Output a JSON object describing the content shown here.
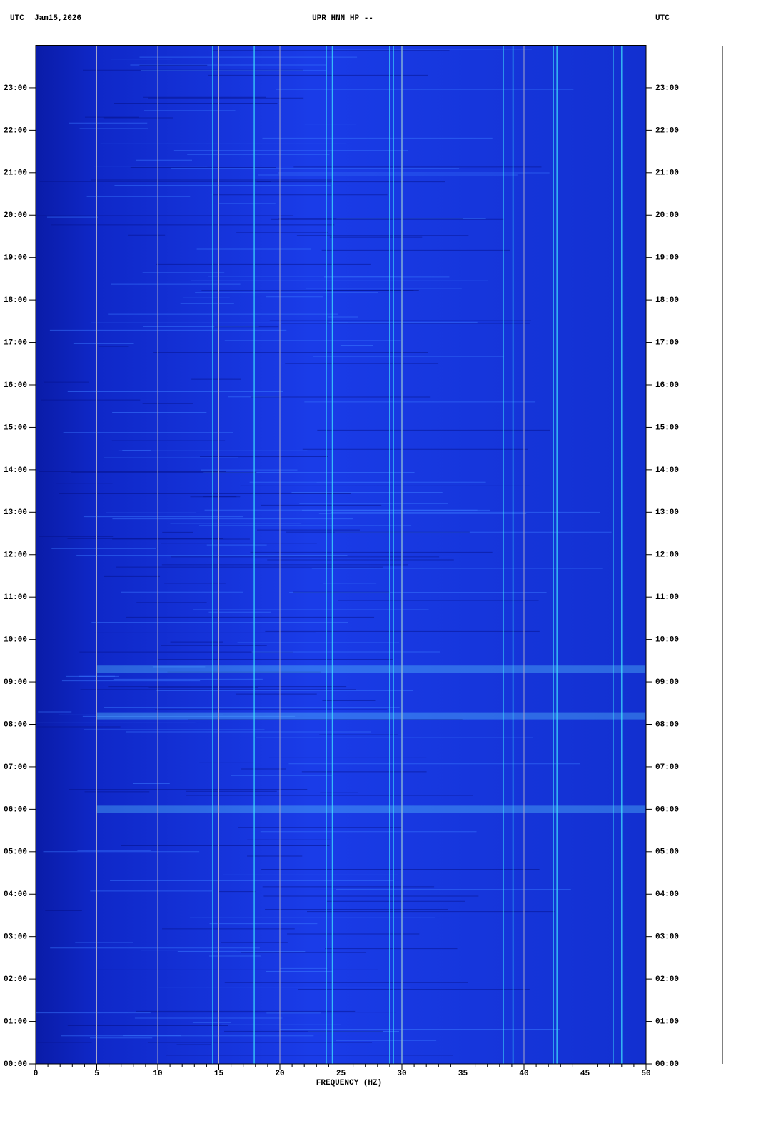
{
  "chart_data": {
    "type": "spectrogram",
    "title": "UPR HNN HP --",
    "date": "Jan15,2026",
    "timezone_label": "UTC",
    "xlabel": "FREQUENCY (HZ)",
    "xlim": [
      0,
      50
    ],
    "xticks": [
      0,
      5,
      10,
      15,
      20,
      25,
      30,
      35,
      40,
      45,
      50
    ],
    "xminorticks": [
      1,
      2,
      3,
      4,
      6,
      7,
      8,
      9,
      11,
      12,
      13,
      14,
      16,
      17,
      18,
      19,
      21,
      22,
      23,
      24,
      26,
      27,
      28,
      29,
      31,
      32,
      33,
      34,
      36,
      37,
      38,
      39,
      41,
      42,
      43,
      44,
      46,
      47,
      48,
      49
    ],
    "ylim": [
      0,
      24
    ],
    "yticks": [
      {
        "value": 0,
        "label": "00:00"
      },
      {
        "value": 1,
        "label": "01:00"
      },
      {
        "value": 2,
        "label": "02:00"
      },
      {
        "value": 3,
        "label": "03:00"
      },
      {
        "value": 4,
        "label": "04:00"
      },
      {
        "value": 5,
        "label": "05:00"
      },
      {
        "value": 6,
        "label": "06:00"
      },
      {
        "value": 7,
        "label": "07:00"
      },
      {
        "value": 8,
        "label": "08:00"
      },
      {
        "value": 9,
        "label": "09:00"
      },
      {
        "value": 10,
        "label": "10:00"
      },
      {
        "value": 11,
        "label": "11:00"
      },
      {
        "value": 12,
        "label": "12:00"
      },
      {
        "value": 13,
        "label": "13:00"
      },
      {
        "value": 14,
        "label": "14:00"
      },
      {
        "value": 15,
        "label": "15:00"
      },
      {
        "value": 16,
        "label": "16:00"
      },
      {
        "value": 17,
        "label": "17:00"
      },
      {
        "value": 18,
        "label": "18:00"
      },
      {
        "value": 19,
        "label": "19:00"
      },
      {
        "value": 20,
        "label": "20:00"
      },
      {
        "value": 21,
        "label": "21:00"
      },
      {
        "value": 22,
        "label": "22:00"
      },
      {
        "value": 23,
        "label": "23:00"
      }
    ],
    "grid": true,
    "grid_color": "#a8a8c8",
    "background_color": "#1436d8",
    "line_color": "#40e8ff",
    "lines_hz": [
      14.5,
      17.9,
      23.8,
      24.3,
      29.0,
      29.3,
      30.0,
      38.3,
      39.1,
      42.4,
      42.7,
      47.3,
      48.0
    ],
    "band_hours": [
      6.0,
      8.2,
      9.3
    ]
  }
}
